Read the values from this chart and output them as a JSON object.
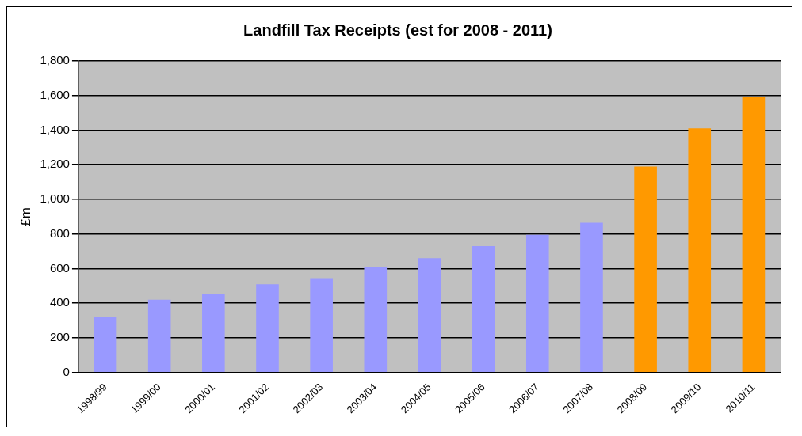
{
  "chart_data": {
    "type": "bar",
    "title": "Landfill Tax Receipts (est for 2008 - 2011)",
    "ylabel": "£m",
    "categories": [
      "1998/99",
      "1999/00",
      "2000/01",
      "2001/02",
      "2002/03",
      "2003/04",
      "2004/05",
      "2005/06",
      "2006/07",
      "2007/08",
      "2008/09",
      "2009/10",
      "2010/11"
    ],
    "values": [
      320,
      420,
      456,
      510,
      545,
      610,
      660,
      730,
      795,
      865,
      1190,
      1410,
      1590
    ],
    "colors": [
      "#9999ff",
      "#9999ff",
      "#9999ff",
      "#9999ff",
      "#9999ff",
      "#9999ff",
      "#9999ff",
      "#9999ff",
      "#9999ff",
      "#9999ff",
      "#ff9900",
      "#ff9900",
      "#ff9900"
    ],
    "ylim": [
      0,
      1800
    ],
    "yticks": [
      {
        "value": 0,
        "label": "0"
      },
      {
        "value": 200,
        "label": "200"
      },
      {
        "value": 400,
        "label": "400"
      },
      {
        "value": 600,
        "label": "600"
      },
      {
        "value": 800,
        "label": "800"
      },
      {
        "value": 1000,
        "label": "1,000"
      },
      {
        "value": 1200,
        "label": "1,200"
      },
      {
        "value": 1400,
        "label": "1,400"
      },
      {
        "value": 1600,
        "label": "1,600"
      },
      {
        "value": 1800,
        "label": "1,800"
      }
    ],
    "grid": "y",
    "legend": false
  }
}
